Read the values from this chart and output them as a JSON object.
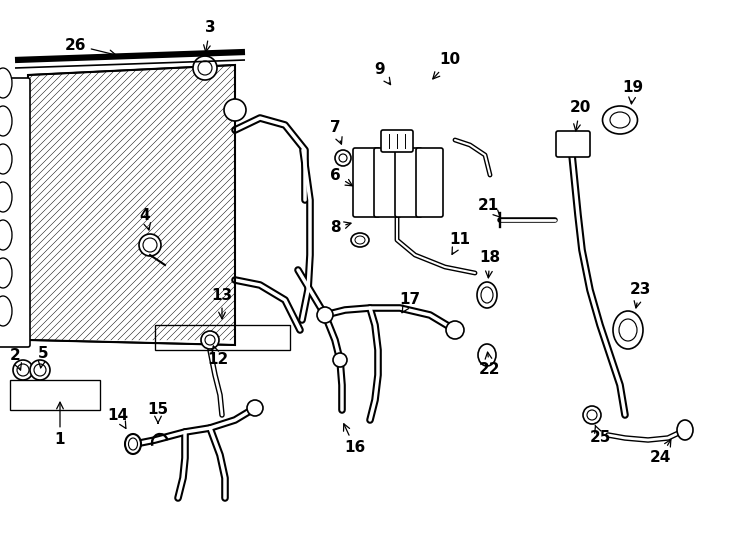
{
  "background_color": "#ffffff",
  "line_color": "#000000",
  "fig_width": 7.34,
  "fig_height": 5.4,
  "dpi": 100,
  "label_fontsize": 11,
  "label_fontsize_small": 9
}
